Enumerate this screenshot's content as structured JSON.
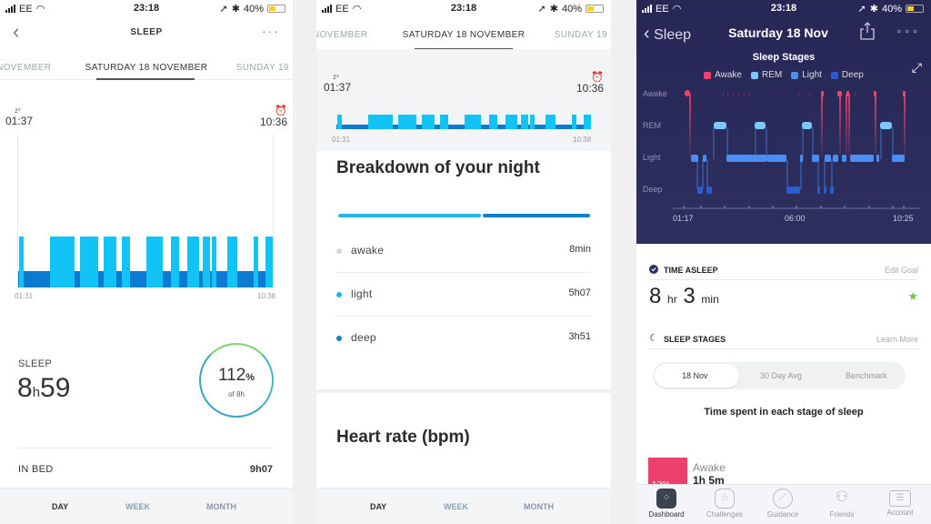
{
  "status_bar": {
    "carrier": "EE",
    "time": "23:18",
    "battery": "40%"
  },
  "panel1": {
    "header": {
      "title": "SLEEP",
      "back_icon": "chevron-left",
      "more_icon": "ellipsis"
    },
    "date_tabs": {
      "prev": "NOVEMBER",
      "current": "SATURDAY 18 NOVEMBER",
      "next": "SUNDAY 19"
    },
    "chart": {
      "sleep_start": "01:37",
      "wake_time": "10:36",
      "axis_start": "01:31",
      "axis_end": "10:38",
      "colors": {
        "light": "#12c4f5",
        "deep": "#0a7bd1"
      },
      "light_segments": [
        [
          21,
          26
        ],
        [
          55,
          82
        ],
        [
          88,
          108
        ],
        [
          114,
          128
        ],
        [
          134,
          143
        ],
        [
          161,
          179
        ],
        [
          188,
          197
        ],
        [
          206,
          219
        ],
        [
          223,
          231
        ],
        [
          233,
          238
        ],
        [
          250,
          261
        ],
        [
          279,
          284
        ],
        [
          292,
          300
        ]
      ]
    },
    "sleep": {
      "label": "SLEEP",
      "hours": "8",
      "h": "h",
      "minutes": "59"
    },
    "goal_ring": {
      "percent": "112",
      "pct_sign": "%",
      "sub": "of 8h"
    },
    "in_bed": {
      "label": "IN BED",
      "value": "9h07"
    },
    "bottom_tabs": [
      "DAY",
      "WEEK",
      "MONTH"
    ]
  },
  "panel2": {
    "date_tabs": {
      "prev": "NOVEMBER",
      "current": "SATURDAY 18 NOVEMBER",
      "next": "SUNDAY 19"
    },
    "chart": {
      "sleep_start": "01:37",
      "wake_time": "10:36",
      "axis_start": "01:31",
      "axis_end": "10:38"
    },
    "breakdown": {
      "title": "Breakdown of your night",
      "bar": {
        "light_color": "#21b9ea",
        "deep_color": "#137fcb"
      },
      "rows": [
        {
          "label": "awake",
          "value": "8min",
          "color": "#d6d6d6"
        },
        {
          "label": "light",
          "value": "5h07",
          "color": "#21b9ea"
        },
        {
          "label": "deep",
          "value": "3h51",
          "color": "#137fcb"
        }
      ]
    },
    "heart_rate_title": "Heart rate (bpm)",
    "bottom_tabs": [
      "DAY",
      "WEEK",
      "MONTH"
    ]
  },
  "panel3": {
    "header": {
      "back_label": "Sleep",
      "title": "Saturday 18 Nov"
    },
    "chart_title": "Sleep Stages",
    "legend": [
      {
        "label": "Awake",
        "color": "#f0416c"
      },
      {
        "label": "REM",
        "color": "#7cc7fb"
      },
      {
        "label": "Light",
        "color": "#4a8ef5"
      },
      {
        "label": "Deep",
        "color": "#2a5bd0"
      }
    ],
    "y_labels": [
      "Awake",
      "REM",
      "Light",
      "Deep"
    ],
    "x_labels": [
      "01:17",
      "06:00",
      "10:25"
    ],
    "time_asleep": {
      "title": "TIME ASLEEP",
      "link": "Edit Goal",
      "hours": "8",
      "hr": "hr",
      "minutes": "3",
      "min": "min"
    },
    "sleep_stages": {
      "title": "SLEEP STAGES",
      "link": "Learn More",
      "segments": [
        "18 Nov",
        "30 Day Avg",
        "Benchmark"
      ],
      "subtitle": "Time spent in each stage of sleep"
    },
    "awake_stage": {
      "percent": "12%",
      "label": "Awake",
      "value": "1h 5m"
    },
    "nav": [
      "Dashboard",
      "Challenges",
      "Guidance",
      "Friends",
      "Account"
    ]
  }
}
